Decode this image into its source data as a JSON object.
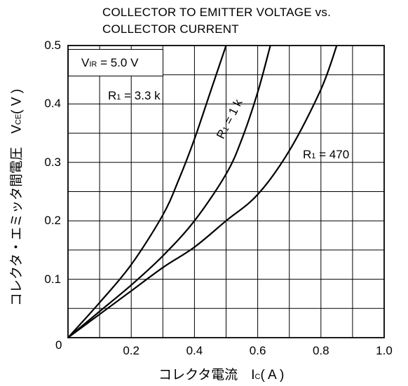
{
  "chart_data": {
    "type": "line",
    "title_line1": "COLLECTOR TO EMITTER VOLTAGE vs.",
    "title_line2": "COLLECTOR CURRENT",
    "xlabel": "コレクタ電流　",
    "xlabel_sym": "I",
    "xlabel_sub": "C",
    "xlabel_unit": "( A )",
    "ylabel": "コレクタ・エミッタ間電圧　",
    "ylabel_sym": "V",
    "ylabel_sub": "CE",
    "ylabel_unit": "( V )",
    "xlim": [
      0,
      1.0
    ],
    "ylim": [
      0,
      0.5
    ],
    "x_ticks": [
      "0.2",
      "0.4",
      "0.6",
      "0.8",
      "1.0"
    ],
    "y_ticks": [
      "0.1",
      "0.2",
      "0.3",
      "0.4",
      "0.5"
    ],
    "origin_label": "0",
    "grid": true,
    "condition_box": {
      "sym": "V",
      "sub": "IR",
      "text": " = 5.0 V"
    },
    "series": [
      {
        "name": "R1 = 3.3 k",
        "label_sym": "R",
        "label_sub": "1",
        "label_text": " = 3.3 k",
        "x": [
          0,
          0.1,
          0.2,
          0.3,
          0.35,
          0.4,
          0.45,
          0.5
        ],
        "y": [
          0,
          0.06,
          0.125,
          0.21,
          0.27,
          0.34,
          0.42,
          0.5
        ]
      },
      {
        "name": "R1 = 1 k",
        "label_sym": "R",
        "label_sub": "1",
        "label_text": " = 1 k",
        "x": [
          0,
          0.1,
          0.2,
          0.3,
          0.4,
          0.5,
          0.55,
          0.6,
          0.64
        ],
        "y": [
          0,
          0.045,
          0.09,
          0.14,
          0.2,
          0.28,
          0.34,
          0.42,
          0.5
        ]
      },
      {
        "name": "R1 = 470",
        "label_sym": "R",
        "label_sub": "1",
        "label_text": " = 470",
        "x": [
          0,
          0.1,
          0.2,
          0.3,
          0.4,
          0.5,
          0.6,
          0.7,
          0.8,
          0.85
        ],
        "y": [
          0,
          0.04,
          0.08,
          0.12,
          0.155,
          0.2,
          0.245,
          0.32,
          0.425,
          0.5
        ]
      }
    ]
  }
}
